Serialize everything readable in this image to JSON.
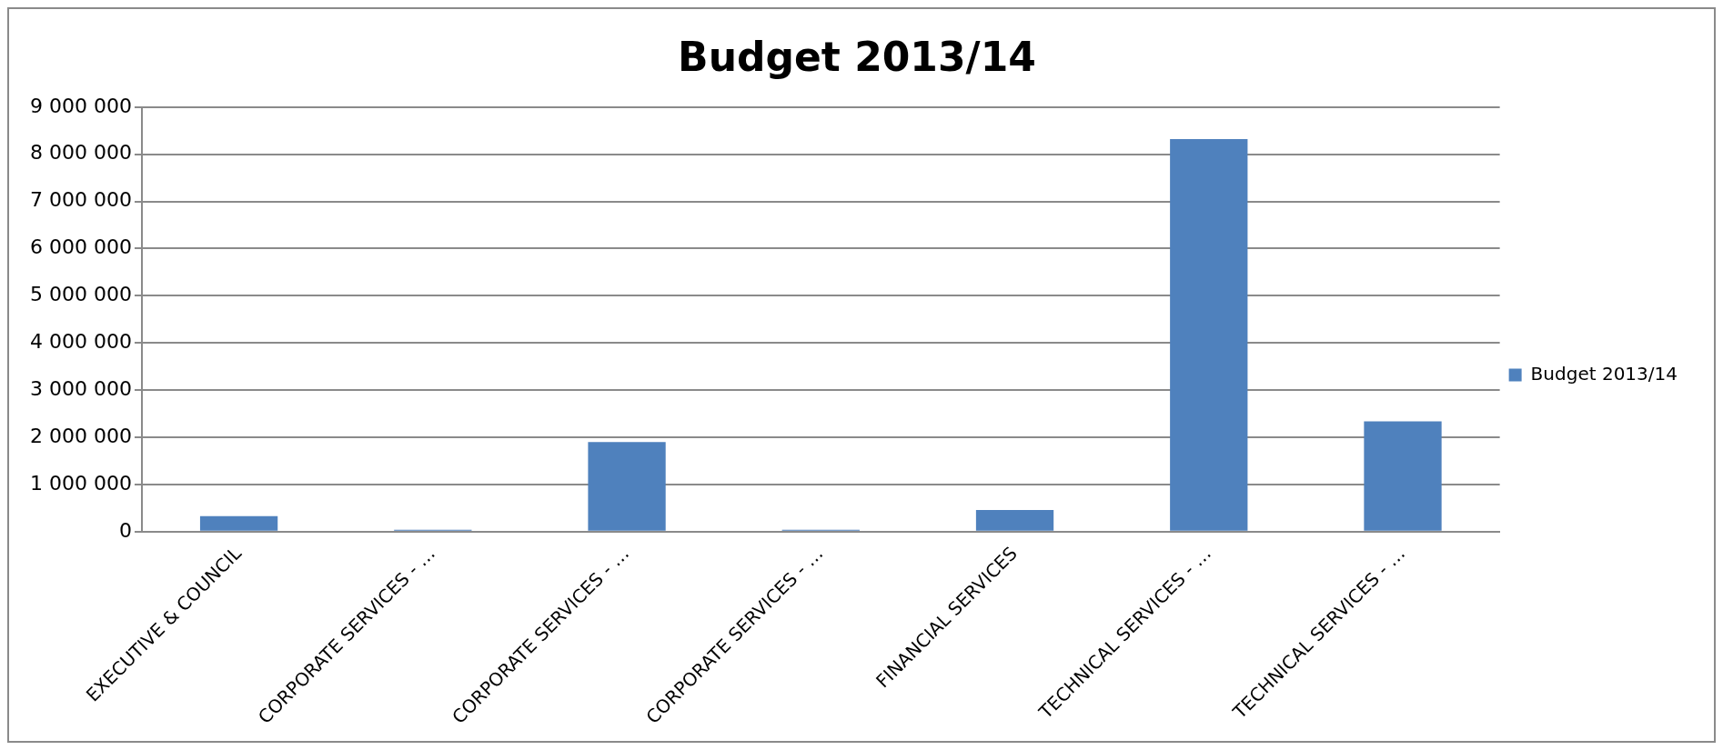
{
  "chart_data": {
    "type": "bar",
    "title": "Budget 2013/14",
    "categories": [
      "EXECUTIVE & COUNCIL",
      "CORPORATE SERVICES - …",
      "CORPORATE SERVICES - …",
      "CORPORATE SERVICES - …",
      "FINANCIAL SERVICES",
      "TECHNICAL SERVICES - …",
      "TECHNICAL SERVICES - …"
    ],
    "series": [
      {
        "name": "Budget 2013/14",
        "color": "#4f81bd",
        "values": [
          330000,
          40000,
          1900000,
          40000,
          460000,
          8320000,
          2340000
        ]
      }
    ],
    "ylim": [
      0,
      9000000
    ],
    "yticks": [
      {
        "value": 0,
        "label": "0"
      },
      {
        "value": 1000000,
        "label": "1 000 000"
      },
      {
        "value": 2000000,
        "label": "2 000 000"
      },
      {
        "value": 3000000,
        "label": "3 000 000"
      },
      {
        "value": 4000000,
        "label": "4 000 000"
      },
      {
        "value": 5000000,
        "label": "5 000 000"
      },
      {
        "value": 6000000,
        "label": "6 000 000"
      },
      {
        "value": 7000000,
        "label": "7 000 000"
      },
      {
        "value": 8000000,
        "label": "8 000 000"
      },
      {
        "value": 9000000,
        "label": "9 000 000"
      }
    ],
    "grid": "y",
    "legend": "right"
  }
}
